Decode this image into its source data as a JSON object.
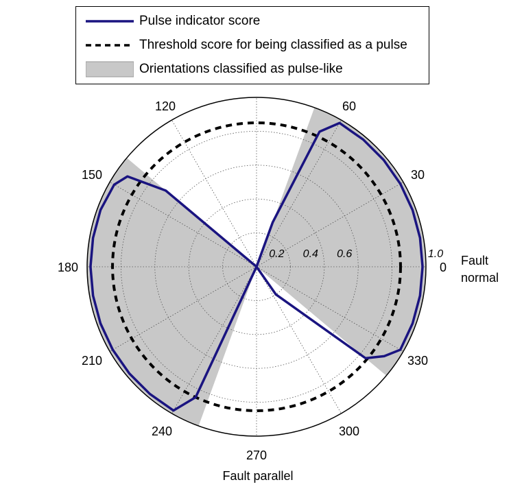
{
  "chart_data": {
    "type": "polar",
    "angle_unit": "degrees",
    "angle_ticks": [
      0,
      30,
      60,
      120,
      150,
      180,
      210,
      240,
      270,
      300,
      330
    ],
    "radial_ticks": [
      0.2,
      0.4,
      0.6
    ],
    "radial_outer_label": "1.0",
    "rlim": [
      0,
      1.0
    ],
    "axis_labels": {
      "fault_normal": [
        "Fault",
        "normal"
      ],
      "fault_parallel": "Fault parallel"
    },
    "colors": {
      "pulse_line": "#1a1480",
      "threshold": "#000000",
      "pulse_fill": "#c8c8c8"
    },
    "legend": [
      {
        "label": "Pulse indicator score",
        "kind": "line"
      },
      {
        "label": "Threshold score for being classified as a pulse",
        "kind": "dashed"
      },
      {
        "label": "Orientations classified as pulse-like",
        "kind": "fill"
      }
    ],
    "threshold": 0.85,
    "pulse_like_ranges": [
      [
        -40,
        70
      ],
      [
        140,
        250
      ]
    ],
    "series": [
      {
        "name": "Pulse indicator score",
        "points": [
          [
            0,
            0.98
          ],
          [
            10,
            0.98
          ],
          [
            20,
            0.98
          ],
          [
            30,
            0.98
          ],
          [
            40,
            0.98
          ],
          [
            50,
            0.98
          ],
          [
            60,
            0.98
          ],
          [
            65,
            0.88
          ],
          [
            70,
            0.28
          ],
          [
            80,
            0.0
          ],
          [
            140,
            0.7
          ],
          [
            145,
            0.93
          ],
          [
            150,
            0.97
          ],
          [
            160,
            0.98
          ],
          [
            170,
            0.98
          ],
          [
            180,
            0.98
          ],
          [
            190,
            0.98
          ],
          [
            200,
            0.98
          ],
          [
            210,
            0.98
          ],
          [
            220,
            0.98
          ],
          [
            230,
            0.98
          ],
          [
            240,
            0.98
          ],
          [
            245,
            0.85
          ],
          [
            260,
            0.0
          ],
          [
            300,
            0.0
          ],
          [
            305,
            0.2
          ],
          [
            320,
            0.84
          ],
          [
            325,
            0.92
          ],
          [
            330,
            0.98
          ],
          [
            340,
            0.98
          ],
          [
            350,
            0.98
          ],
          [
            360,
            0.98
          ]
        ]
      }
    ]
  }
}
